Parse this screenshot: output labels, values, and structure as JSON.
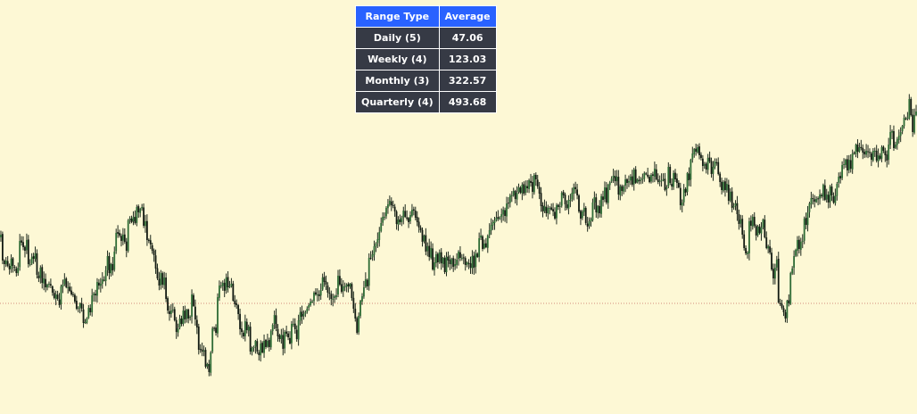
{
  "colors": {
    "background": "#fdf8d5",
    "candle": "#1e2a1e",
    "candle_up_body": "#2e6b35",
    "candle_down_body": "#121a12",
    "reference_line": "#d28a7c",
    "table_header": "#2962ff",
    "table_cell": "#363a45",
    "table_text": "#ffffff"
  },
  "range_table": {
    "headers": [
      "Range Type",
      "Average"
    ],
    "rows": [
      {
        "type": "Daily (5)",
        "average": "47.06"
      },
      {
        "type": "Weekly (4)",
        "average": "123.03"
      },
      {
        "type": "Monthly (3)",
        "average": "322.57"
      },
      {
        "type": "Quarterly (4)",
        "average": "493.68"
      }
    ]
  },
  "chart_data": {
    "type": "candlestick",
    "title": "",
    "xlabel": "",
    "ylabel": "",
    "axes_visible": false,
    "grid": false,
    "ylim": [
      0,
      464
    ],
    "reference_line": {
      "y": 340,
      "style": "dotted"
    },
    "close_series": [
      263,
      292,
      296,
      292,
      298,
      302,
      290,
      298,
      300,
      306,
      300,
      270,
      272,
      277,
      281,
      269,
      296,
      296,
      288,
      290,
      284,
      308,
      312,
      300,
      317,
      312,
      322,
      319,
      318,
      320,
      328,
      334,
      330,
      335,
      342,
      321,
      319,
      313,
      322,
      322,
      326,
      330,
      330,
      338,
      346,
      345,
      340,
      346,
      362,
      361,
      357,
      345,
      350,
      331,
      329,
      331,
      316,
      320,
      318,
      313,
      314,
      303,
      287,
      306,
      296,
      303,
      282,
      261,
      262,
      264,
      270,
      263,
      271,
      281,
      247,
      245,
      249,
      243,
      250,
      232,
      238,
      234,
      232,
      253,
      248,
      269,
      270,
      274,
      281,
      286,
      301,
      312,
      320,
      306,
      319,
      311,
      335,
      348,
      352,
      348,
      347,
      359,
      372,
      368,
      357,
      363,
      348,
      358,
      347,
      357,
      355,
      330,
      343,
      358,
      367,
      392,
      392,
      394,
      393,
      411,
      408,
      417,
      395,
      368,
      368,
      373,
      333,
      320,
      320,
      317,
      326,
      311,
      322,
      321,
      318,
      337,
      341,
      342,
      352,
      369,
      372,
      377,
      360,
      370,
      366,
      394,
      390,
      389,
      382,
      394,
      398,
      385,
      395,
      382,
      389,
      382,
      389,
      371,
      364,
      353,
      368,
      377,
      380,
      375,
      391,
      372,
      374,
      378,
      385,
      363,
      363,
      369,
      380,
      359,
      350,
      355,
      352,
      350,
      346,
      342,
      338,
      338,
      328,
      330,
      330,
      332,
      325,
      311,
      316,
      319,
      328,
      329,
      335,
      335,
      332,
      331,
      309,
      319,
      327,
      321,
      321,
      319,
      321,
      318,
      334,
      346,
      357,
      373,
      354,
      337,
      332,
      322,
      313,
      321,
      289,
      289,
      285,
      276,
      273,
      268,
      260,
      250,
      243,
      243,
      233,
      229,
      225,
      230,
      231,
      237,
      251,
      246,
      249,
      244,
      236,
      243,
      245,
      249,
      241,
      235,
      236,
      244,
      249,
      255,
      258,
      271,
      264,
      282,
      276,
      288,
      278,
      302,
      294,
      285,
      294,
      283,
      295,
      289,
      305,
      288,
      292,
      296,
      290,
      299,
      296,
      291,
      282,
      289,
      289,
      289,
      297,
      294,
      295,
      300,
      287,
      300,
      284,
      288,
      267,
      264,
      279,
      273,
      277,
      264,
      258,
      252,
      249,
      247,
      244,
      245,
      244,
      240,
      235,
      242,
      228,
      228,
      219,
      219,
      214,
      223,
      216,
      210,
      216,
      207,
      217,
      208,
      211,
      202,
      205,
      215,
      196,
      201,
      209,
      217,
      231,
      237,
      231,
      239,
      233,
      233,
      235,
      237,
      245,
      230,
      232,
      231,
      216,
      219,
      229,
      233,
      224,
      224,
      216,
      210,
      212,
      219,
      237,
      245,
      237,
      233,
      250,
      254,
      248,
      246,
      227,
      221,
      238,
      231,
      239,
      220,
      224,
      210,
      227,
      207,
      204,
      200,
      197,
      203,
      198,
      218,
      209,
      214,
      209,
      201,
      205,
      203,
      198,
      207,
      190,
      205,
      201,
      203,
      201,
      200,
      194,
      195,
      198,
      204,
      196,
      197,
      189,
      201,
      204,
      203,
      202,
      201,
      213,
      210,
      187,
      205,
      209,
      194,
      201,
      205,
      210,
      230,
      227,
      212,
      216,
      194,
      202,
      179,
      172,
      167,
      170,
      165,
      174,
      177,
      186,
      184,
      190,
      177,
      181,
      195,
      187,
      181,
      182,
      195,
      204,
      213,
      204,
      213,
      206,
      225,
      215,
      233,
      231,
      228,
      240,
      251,
      246,
      263,
      278,
      284,
      283,
      248,
      253,
      243,
      253,
      264,
      254,
      261,
      255,
      246,
      266,
      278,
      276,
      283,
      302,
      312,
      300,
      291,
      339,
      341,
      345,
      350,
      357,
      337,
      340,
      306,
      301,
      287,
      280,
      269,
      279,
      271,
      270,
      245,
      252,
      238,
      228,
      222,
      223,
      226,
      223,
      223,
      218,
      220,
      207,
      224,
      218,
      227,
      209,
      219,
      227,
      219,
      206,
      198,
      200,
      185,
      184,
      179,
      191,
      179,
      189,
      172,
      172,
      162,
      170,
      165,
      166,
      171,
      173,
      169,
      170,
      171,
      179,
      169,
      169,
      180,
      174,
      178,
      165,
      169,
      174,
      180,
      162,
      148,
      147,
      166,
      162,
      156,
      152,
      148,
      141,
      132,
      133,
      132,
      111,
      129,
      148,
      129,
      125
    ]
  }
}
